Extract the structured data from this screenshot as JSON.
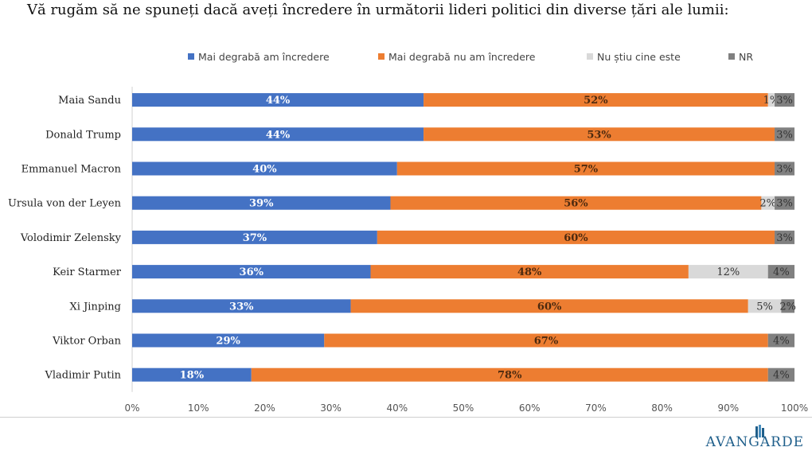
{
  "title": "Vă rugăm să ne spuneți dacă aveți încredere în următorii lideri politici din diverse țări ale lumii:",
  "logo_text": "AVANGARDE",
  "chart_data": {
    "type": "bar",
    "orientation": "horizontal",
    "stacked": true,
    "xlim": [
      0,
      100
    ],
    "ticks": [
      "0%",
      "10%",
      "20%",
      "30%",
      "40%",
      "50%",
      "60%",
      "70%",
      "80%",
      "90%",
      "100%"
    ],
    "legend_position": "top",
    "categories": [
      "Maia Sandu",
      "Donald Trump",
      "Emmanuel Macron",
      "Ursula von der Leyen",
      "Volodimir Zelensky",
      "Keir Starmer",
      "Xi Jinping",
      "Viktor Orban",
      "Vladimir Putin"
    ],
    "series": [
      {
        "name": "Mai degrabă am încredere",
        "color": "#4472c4",
        "values": [
          44,
          44,
          40,
          39,
          37,
          36,
          33,
          29,
          18
        ]
      },
      {
        "name": "Mai degrabă nu am încredere",
        "color": "#ed7d31",
        "values": [
          52,
          53,
          57,
          56,
          60,
          48,
          60,
          67,
          78
        ]
      },
      {
        "name": "Nu știu cine este",
        "color": "#d9d9d9",
        "values": [
          1,
          0,
          0,
          2,
          0,
          12,
          5,
          0,
          0
        ]
      },
      {
        "name": "NR",
        "color": "#808080",
        "values": [
          3,
          3,
          3,
          3,
          3,
          4,
          2,
          4,
          4
        ]
      }
    ]
  }
}
